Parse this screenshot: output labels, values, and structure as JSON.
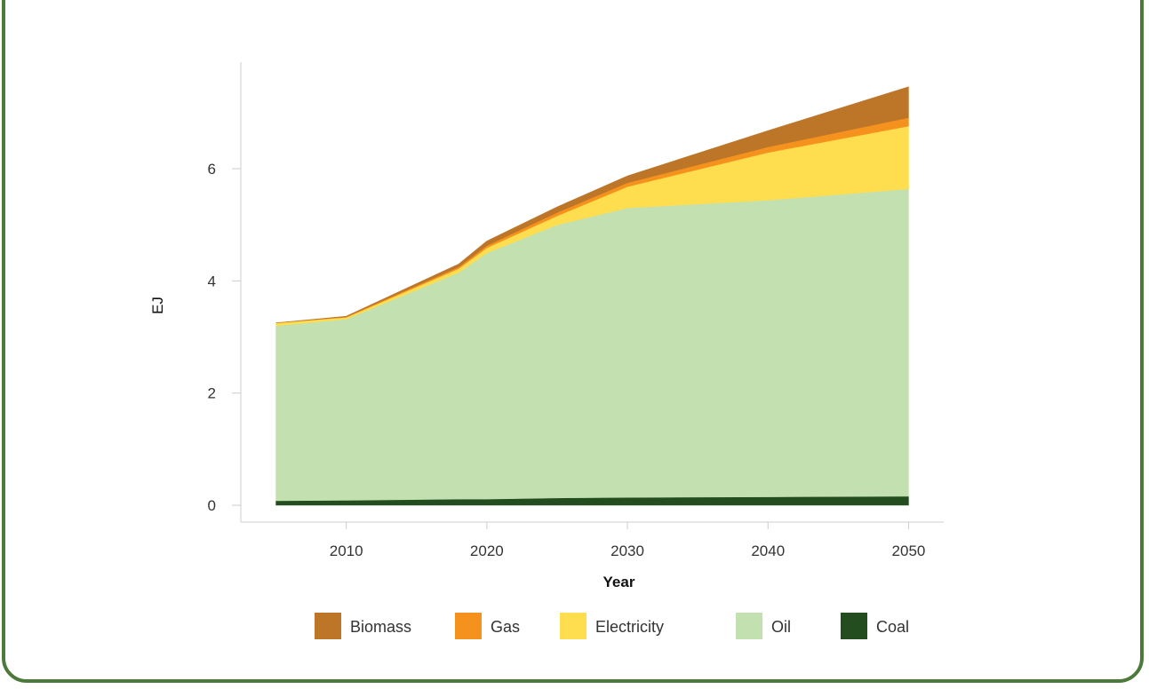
{
  "chart_data": {
    "type": "area",
    "stacked": true,
    "x": [
      2005,
      2010,
      2018,
      2020,
      2025,
      2030,
      2040,
      2050
    ],
    "series": [
      {
        "name": "Coal",
        "color": "#244d1f",
        "values": [
          0.08,
          0.09,
          0.11,
          0.11,
          0.13,
          0.14,
          0.15,
          0.16
        ]
      },
      {
        "name": "Oil",
        "color": "#c3e0b0",
        "values": [
          3.12,
          3.23,
          4.04,
          4.39,
          4.87,
          5.16,
          5.29,
          5.48
        ]
      },
      {
        "name": "Electricity",
        "color": "#fede4f",
        "values": [
          0.05,
          0.03,
          0.07,
          0.09,
          0.16,
          0.38,
          0.85,
          1.12
        ]
      },
      {
        "name": "Gas",
        "color": "#f5921e",
        "values": [
          0.0,
          0.01,
          0.03,
          0.04,
          0.06,
          0.07,
          0.1,
          0.15
        ]
      },
      {
        "name": "Biomass",
        "color": "#bd7528",
        "values": [
          0.0,
          0.01,
          0.05,
          0.08,
          0.1,
          0.12,
          0.29,
          0.55
        ]
      }
    ],
    "xlabel": "Year",
    "ylabel": "EJ",
    "xlim": [
      2002.5,
      2052.5
    ],
    "ylim": [
      -0.3,
      7.9
    ],
    "xticks": [
      2010,
      2020,
      2030,
      2040,
      2050
    ],
    "yticks": [
      0,
      2,
      4,
      6
    ],
    "legend": {
      "position": "bottom",
      "order": [
        "Biomass",
        "Gas",
        "Electricity",
        "Oil",
        "Coal"
      ]
    },
    "grid": false
  }
}
